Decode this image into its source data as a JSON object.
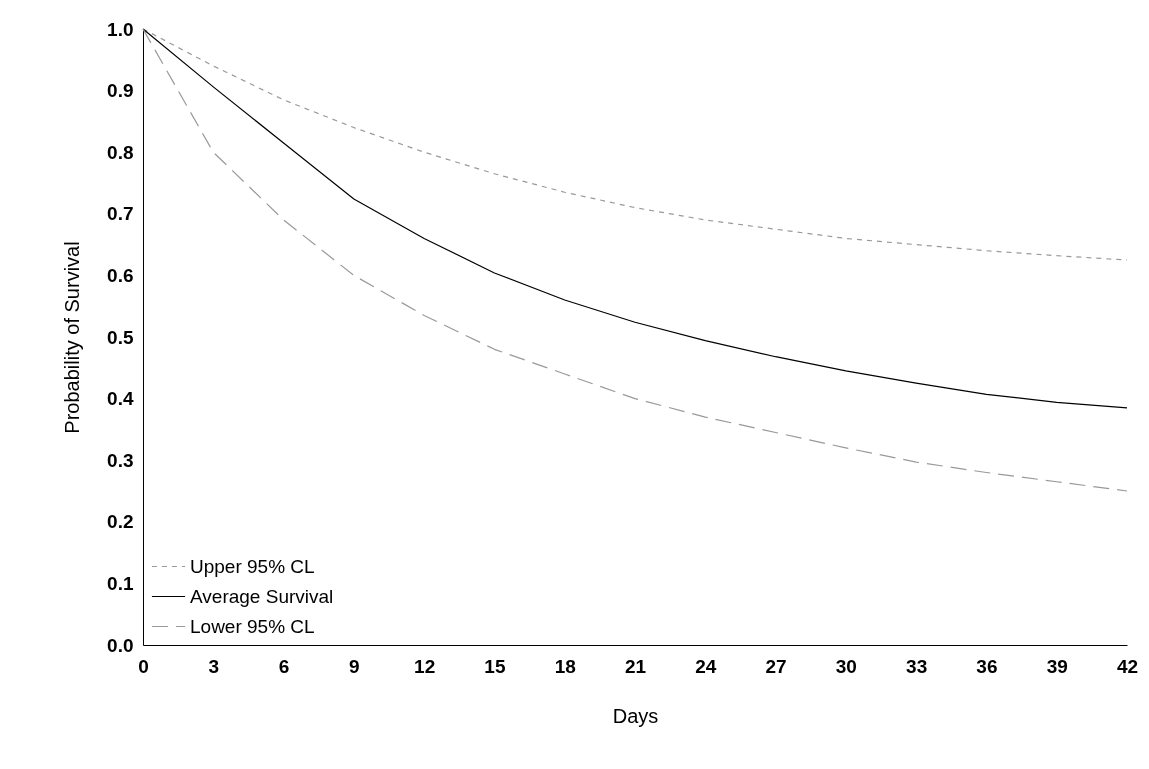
{
  "chart_data": {
    "type": "line",
    "xlabel": "Days",
    "ylabel": "Probability of Survival",
    "x": [
      0,
      3,
      6,
      9,
      12,
      15,
      18,
      21,
      24,
      27,
      30,
      33,
      36,
      39,
      42
    ],
    "xlim": [
      0,
      42
    ],
    "xticks": [
      0,
      3,
      6,
      9,
      12,
      15,
      18,
      21,
      24,
      27,
      30,
      33,
      36,
      39,
      42
    ],
    "ylim": [
      0,
      1
    ],
    "yticks": [
      {
        "value": 0,
        "label": "0.0"
      },
      0.1,
      0.2,
      0.3,
      0.4,
      0.5,
      0.6,
      0.7,
      0.8,
      0.9,
      {
        "value": 1,
        "label": "1.0"
      }
    ],
    "grid": false,
    "legend": "bottom left",
    "marker": "none",
    "series": [
      {
        "name": "Upper 95% CL",
        "color": "#999999",
        "line_style": "dotted",
        "values": [
          1.0,
          0.94,
          0.885,
          0.84,
          0.8,
          0.765,
          0.735,
          0.71,
          0.69,
          0.675,
          0.66,
          0.65,
          0.64,
          0.632,
          0.625
        ]
      },
      {
        "name": "Average Survival",
        "color": "#000000",
        "line_style": "solid",
        "values": [
          1.0,
          0.906,
          0.815,
          0.724,
          0.66,
          0.604,
          0.56,
          0.524,
          0.494,
          0.468,
          0.445,
          0.425,
          0.407,
          0.394,
          0.385
        ]
      },
      {
        "name": "Lower 95% CL",
        "color": "#999999",
        "line_style": "dashed",
        "values": [
          1.0,
          0.8,
          0.69,
          0.6,
          0.535,
          0.48,
          0.44,
          0.4,
          0.37,
          0.345,
          0.32,
          0.297,
          0.28,
          0.265,
          0.25
        ]
      }
    ]
  }
}
